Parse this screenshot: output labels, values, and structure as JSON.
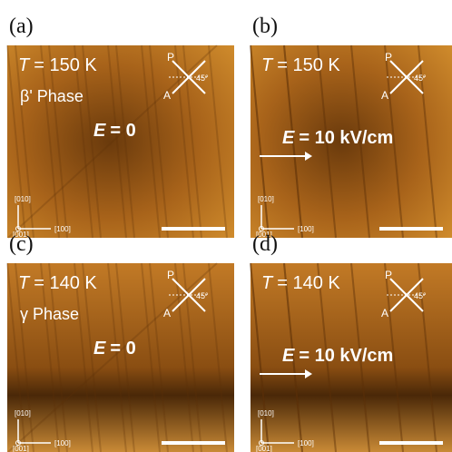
{
  "panels": [
    {
      "label": "(a)",
      "temp_symbol": "T",
      "temp_value": "= 150 K",
      "phase": "β' Phase",
      "field_symbol": "E",
      "field_value": "= 0",
      "polarizer": "P",
      "analyzer": "A",
      "angle": "45°",
      "axes": [
        "[010]",
        "[001]",
        "[100]"
      ]
    },
    {
      "label": "(b)",
      "temp_symbol": "T",
      "temp_value": "= 150 K",
      "field_symbol": "E",
      "field_value": "= 10 kV/cm",
      "polarizer": "P",
      "analyzer": "A",
      "angle": "45°",
      "axes": [
        "[010]",
        "[001]",
        "[100]"
      ]
    },
    {
      "label": "(c)",
      "temp_symbol": "T",
      "temp_value": "= 140 K",
      "phase": "γ Phase",
      "field_symbol": "E",
      "field_value": "= 0",
      "polarizer": "P",
      "analyzer": "A",
      "angle": "45°",
      "axes": [
        "[010]",
        "[001]",
        "[100]"
      ]
    },
    {
      "label": "(d)",
      "temp_symbol": "T",
      "temp_value": "= 140 K",
      "field_symbol": "E",
      "field_value": "= 10 kV/cm",
      "polarizer": "P",
      "analyzer": "A",
      "angle": "45°",
      "axes": [
        "[010]",
        "[001]",
        "[100]"
      ]
    }
  ]
}
